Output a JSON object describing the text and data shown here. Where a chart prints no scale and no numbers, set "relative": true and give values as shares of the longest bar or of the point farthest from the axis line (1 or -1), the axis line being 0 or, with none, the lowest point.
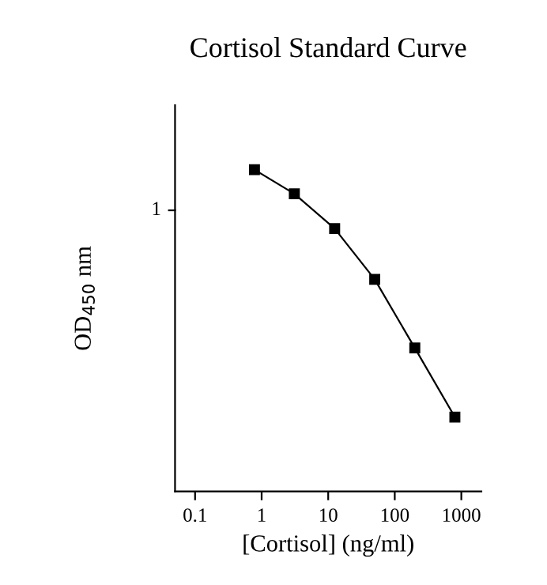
{
  "chart_data": {
    "type": "line",
    "title": "Cortisol Standard Curve",
    "xlabel": "[Cortisol] (ng/ml)",
    "ylabel": "OD$_{450}$ nm",
    "x": [
      0.78,
      3.1,
      12.5,
      50,
      200,
      800
    ],
    "series": [
      {
        "color": "#000000",
        "values": [
          1,
          0.925,
          0.817,
          0.659,
          0.446,
          0.231
        ]
      }
    ],
    "relative": true,
    "log": "x",
    "xlim": [
      0.05,
      2000
    ],
    "xticks": [
      0.1,
      1,
      10,
      100,
      1000
    ],
    "annotations": [
      "1"
    ],
    "marker": "square",
    "line_style": "solid",
    "grid": false,
    "legend": false
  }
}
